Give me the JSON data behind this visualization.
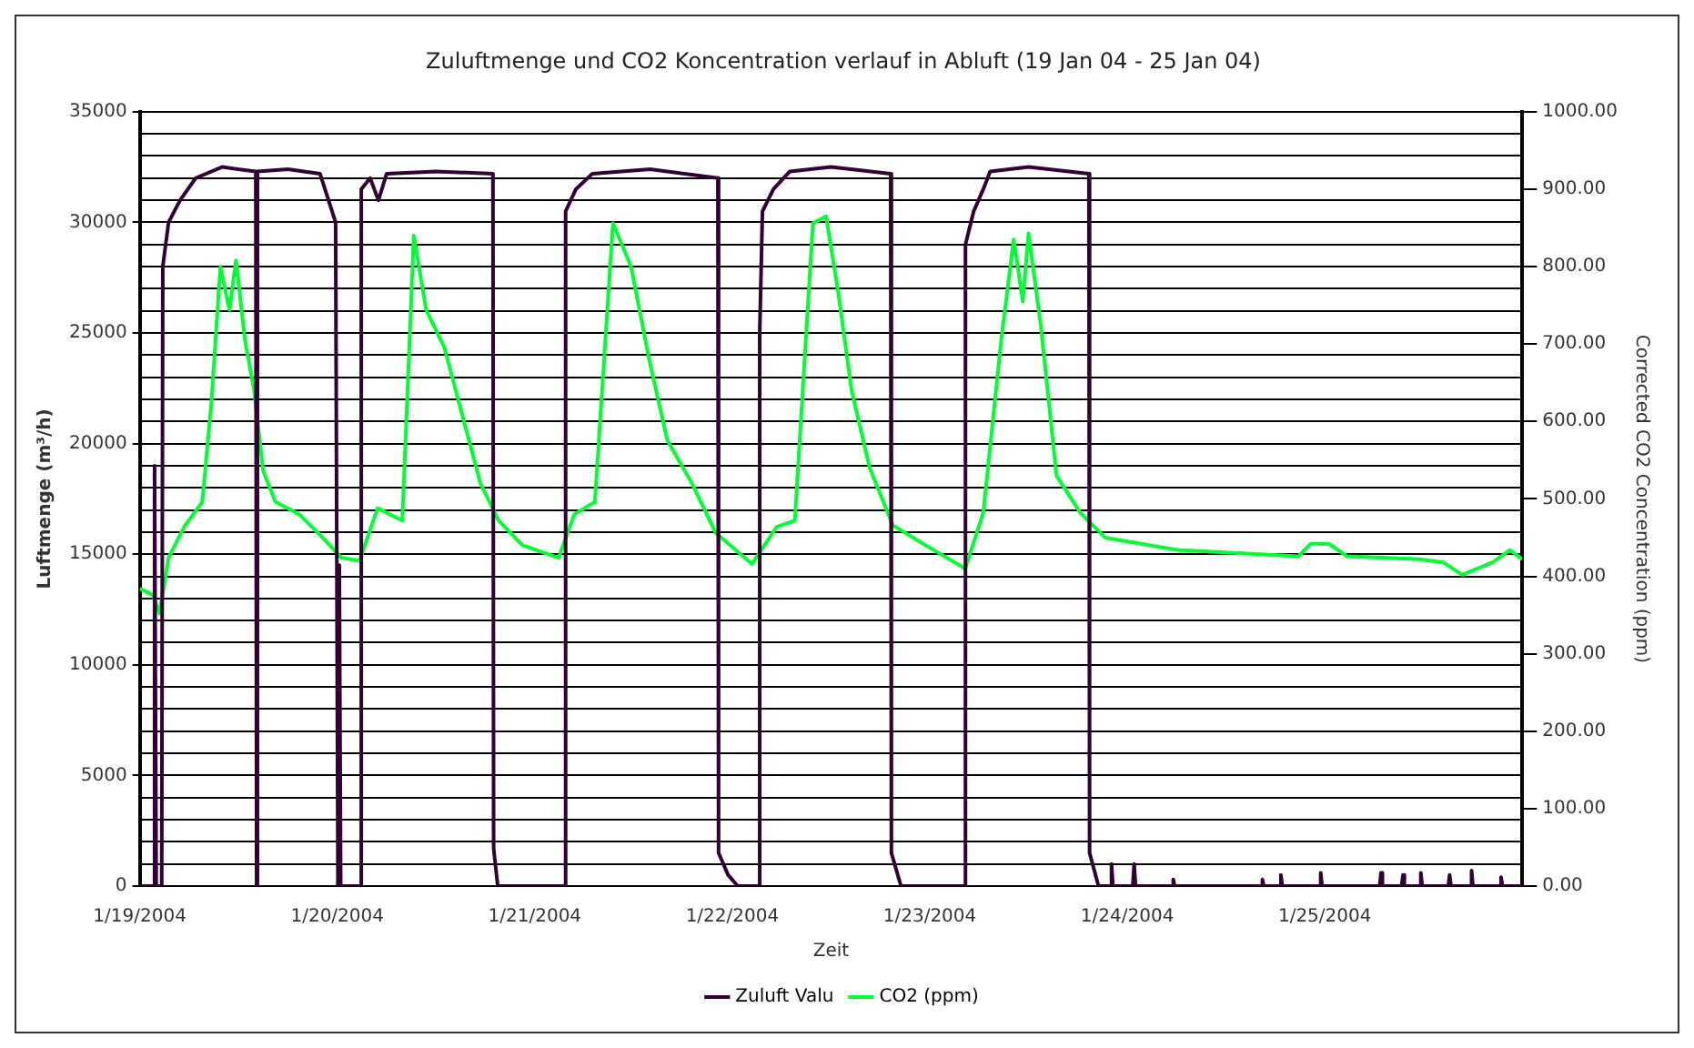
{
  "chart_data": {
    "type": "line",
    "title": "Zuluftmenge und CO2 Koncentration verlauf in Abluft (19 Jan 04 - 25 Jan 04)",
    "xlabel": "Zeit",
    "ylabel": "Luftmenge (m³/h)",
    "y2label": "Corrected CO2 Concentration (ppm)",
    "xlim": [
      "2004-01-19T00:00",
      "2004-01-26T00:00"
    ],
    "xticks": [
      {
        "value": "2004-01-19",
        "label": "1/19/2004"
      },
      {
        "value": "2004-01-20",
        "label": "1/20/2004"
      },
      {
        "value": "2004-01-21",
        "label": "1/21/2004"
      },
      {
        "value": "2004-01-22",
        "label": "1/22/2004"
      },
      {
        "value": "2004-01-23",
        "label": "1/23/2004"
      },
      {
        "value": "2004-01-24",
        "label": "1/24/2004"
      },
      {
        "value": "2004-01-25",
        "label": "1/25/2004"
      }
    ],
    "ylim": [
      0,
      35000
    ],
    "yticks": [
      0,
      {
        "value": 1000,
        "label": null
      },
      {
        "value": 2000,
        "label": null
      },
      {
        "value": 3000,
        "label": null
      },
      {
        "value": 4000,
        "label": null
      },
      5000,
      {
        "value": 6000,
        "label": null
      },
      {
        "value": 7000,
        "label": null
      },
      {
        "value": 8000,
        "label": null
      },
      {
        "value": 9000,
        "label": null
      },
      10000,
      {
        "value": 11000,
        "label": null
      },
      {
        "value": 12000,
        "label": null
      },
      {
        "value": 13000,
        "label": null
      },
      {
        "value": 14000,
        "label": null
      },
      15000,
      {
        "value": 16000,
        "label": null
      },
      {
        "value": 17000,
        "label": null
      },
      {
        "value": 18000,
        "label": null
      },
      {
        "value": 19000,
        "label": null
      },
      20000,
      {
        "value": 21000,
        "label": null
      },
      {
        "value": 22000,
        "label": null
      },
      {
        "value": 23000,
        "label": null
      },
      {
        "value": 24000,
        "label": null
      },
      25000,
      {
        "value": 26000,
        "label": null
      },
      {
        "value": 27000,
        "label": null
      },
      {
        "value": 28000,
        "label": null
      },
      {
        "value": 29000,
        "label": null
      },
      30000,
      {
        "value": 31000,
        "label": null
      },
      {
        "value": 32000,
        "label": null
      },
      {
        "value": 33000,
        "label": null
      },
      {
        "value": 34000,
        "label": null
      },
      35000
    ],
    "y2lim": [
      0,
      1000
    ],
    "y2ticks": [
      {
        "value": 0,
        "label": "0.00"
      },
      {
        "value": 100,
        "label": "100.00"
      },
      {
        "value": 200,
        "label": "200.00"
      },
      {
        "value": 300,
        "label": "300.00"
      },
      {
        "value": 400,
        "label": "400.00"
      },
      {
        "value": 500,
        "label": "500.00"
      },
      {
        "value": 600,
        "label": "600.00"
      },
      {
        "value": 700,
        "label": "700.00"
      },
      {
        "value": 800,
        "label": "800.00"
      },
      {
        "value": 900,
        "label": "900.00"
      },
      {
        "value": 1000,
        "label": "1000.00"
      }
    ],
    "grid": "y",
    "legend": "bottom",
    "marker": "none",
    "line_style": "solid",
    "series": [
      {
        "name": "Zuluft Valu",
        "color": "#330033",
        "x": [
          "2004-01-19T00:00",
          "2004-01-19T01:40",
          "2004-01-19T01:48",
          "2004-01-19T02:00",
          "2004-01-19T02:40",
          "2004-01-19T02:48",
          "2004-01-19T03:30",
          "2004-01-19T04:54",
          "2004-01-19T06:48",
          "2004-01-19T10:00",
          "2004-01-19T14:06",
          "2004-01-19T14:12",
          "2004-01-19T14:18",
          "2004-01-19T18:00",
          "2004-01-19T21:54",
          "2004-01-19T23:48",
          "2004-01-20T00:05",
          "2004-01-20T00:15",
          "2004-01-20T00:25",
          "2004-01-20T02:50",
          "2004-01-20T02:55",
          "2004-01-20T04:00",
          "2004-01-20T05:00",
          "2004-01-20T06:00",
          "2004-01-20T12:00",
          "2004-01-20T18:55",
          "2004-01-20T19:00",
          "2004-01-20T19:30",
          "2004-01-21T03:40",
          "2004-01-21T03:45",
          "2004-01-21T05:00",
          "2004-01-21T07:00",
          "2004-01-21T14:00",
          "2004-01-21T22:15",
          "2004-01-21T22:20",
          "2004-01-21T23:30",
          "2004-01-22T00:40",
          "2004-01-22T03:15",
          "2004-01-22T03:20",
          "2004-01-22T03:40",
          "2004-01-22T05:00",
          "2004-01-22T07:00",
          "2004-01-22T12:00",
          "2004-01-22T19:15",
          "2004-01-22T19:20",
          "2004-01-22T20:30",
          "2004-01-23T04:15",
          "2004-01-23T04:20",
          "2004-01-23T05:20",
          "2004-01-23T06:30",
          "2004-01-23T07:20",
          "2004-01-23T12:00",
          "2004-01-23T19:20",
          "2004-01-23T19:25",
          "2004-01-23T20:30",
          "2004-01-23T21:55",
          "2004-01-23T22:05",
          "2004-01-23T22:15",
          "2004-01-24T00:40",
          "2004-01-24T00:50",
          "2004-01-24T01:00",
          "2004-01-24T05:25",
          "2004-01-24T05:35",
          "2004-01-24T05:45",
          "2004-01-24T16:15",
          "2004-01-24T16:25",
          "2004-01-24T16:35",
          "2004-01-24T18:30",
          "2004-01-24T18:40",
          "2004-01-24T18:50",
          "2004-01-24T23:20",
          "2004-01-24T23:30",
          "2004-01-24T23:40",
          "2004-01-25T06:40",
          "2004-01-25T06:50",
          "2004-01-25T07:00",
          "2004-01-25T09:20",
          "2004-01-25T09:30",
          "2004-01-25T09:40",
          "2004-01-25T11:30",
          "2004-01-25T11:40",
          "2004-01-25T11:50",
          "2004-01-25T15:00",
          "2004-01-25T15:10",
          "2004-01-25T15:20",
          "2004-01-25T17:40",
          "2004-01-25T17:50",
          "2004-01-25T18:00",
          "2004-01-25T21:15",
          "2004-01-25T21:25",
          "2004-01-25T21:35",
          "2004-01-26T00:00"
        ],
        "values": [
          0,
          0,
          19000,
          0,
          0,
          28000,
          30000,
          31000,
          32000,
          32500,
          32300,
          0,
          32300,
          32400,
          32200,
          30000,
          0,
          14500,
          0,
          0,
          31500,
          32000,
          31000,
          32200,
          32300,
          32200,
          1700,
          0,
          0,
          30500,
          31500,
          32200,
          32400,
          32000,
          1500,
          500,
          0,
          0,
          25000,
          30500,
          31500,
          32300,
          32500,
          32200,
          1500,
          0,
          0,
          29000,
          30500,
          31500,
          32300,
          32500,
          32200,
          1500,
          0,
          0,
          1000,
          0,
          0,
          1000,
          0,
          0,
          300,
          0,
          0,
          300,
          0,
          0,
          500,
          0,
          0,
          600,
          0,
          0,
          600,
          0,
          0,
          500,
          0,
          0,
          600,
          0,
          0,
          500,
          0,
          0,
          700,
          0,
          0,
          400,
          0,
          0
        ]
      },
      {
        "name": "CO2 (ppm)",
        "color": "#00ff33",
        "axis": "y2",
        "x": [
          "2004-01-19T00:00",
          "2004-01-19T01:36",
          "2004-01-19T02:24",
          "2004-01-19T03:30",
          "2004-01-19T05:24",
          "2004-01-19T07:36",
          "2004-01-19T08:42",
          "2004-01-19T09:48",
          "2004-01-19T10:54",
          "2004-01-19T11:42",
          "2004-01-19T12:48",
          "2004-01-19T13:54",
          "2004-01-19T15:00",
          "2004-01-19T16:30",
          "2004-01-19T19:24",
          "2004-01-19T22:24",
          "2004-01-20T00:30",
          "2004-01-20T02:42",
          "2004-01-20T04:54",
          "2004-01-20T07:54",
          "2004-01-20T09:18",
          "2004-01-20T10:48",
          "2004-01-20T13:00",
          "2004-01-20T15:12",
          "2004-01-20T17:24",
          "2004-01-20T19:36",
          "2004-01-20T22:30",
          "2004-01-21T02:54",
          "2004-01-21T04:48",
          "2004-01-21T07:18",
          "2004-01-21T09:30",
          "2004-01-21T11:42",
          "2004-01-21T13:54",
          "2004-01-21T16:06",
          "2004-01-21T19:06",
          "2004-01-21T22:00",
          "2004-01-22T02:24",
          "2004-01-22T05:24",
          "2004-01-22T07:36",
          "2004-01-22T09:48",
          "2004-01-22T11:24",
          "2004-01-22T12:54",
          "2004-01-22T14:30",
          "2004-01-22T16:42",
          "2004-01-22T19:30",
          "2004-01-22T23:12",
          "2004-01-23T04:18",
          "2004-01-23T06:30",
          "2004-01-23T08:42",
          "2004-01-23T10:12",
          "2004-01-23T11:18",
          "2004-01-23T12:00",
          "2004-01-23T13:30",
          "2004-01-23T15:24",
          "2004-01-23T18:18",
          "2004-01-23T21:18",
          "2004-01-24T06:06",
          "2004-01-24T20:48",
          "2004-01-24T22:18",
          "2004-01-25T00:30",
          "2004-01-25T02:42",
          "2004-01-25T11:30",
          "2004-01-25T14:24",
          "2004-01-25T16:42",
          "2004-01-25T20:24",
          "2004-01-25T22:30",
          "2004-01-26T00:00"
        ],
        "values": [
          384,
          376,
          352,
          424,
          464,
          496,
          624,
          800,
          744,
          808,
          704,
          640,
          536,
          496,
          480,
          448,
          424,
          420,
          488,
          472,
          840,
          744,
          696,
          608,
          520,
          472,
          440,
          424,
          480,
          496,
          856,
          800,
          680,
          576,
          520,
          456,
          416,
          464,
          472,
          856,
          865,
          765,
          640,
          540,
          466,
          442,
          410,
          482,
          707,
          835,
          755,
          843,
          723,
          530,
          482,
          450,
          434,
          426,
          442,
          442,
          426,
          422,
          418,
          402,
          418,
          434,
          422
        ]
      }
    ]
  }
}
